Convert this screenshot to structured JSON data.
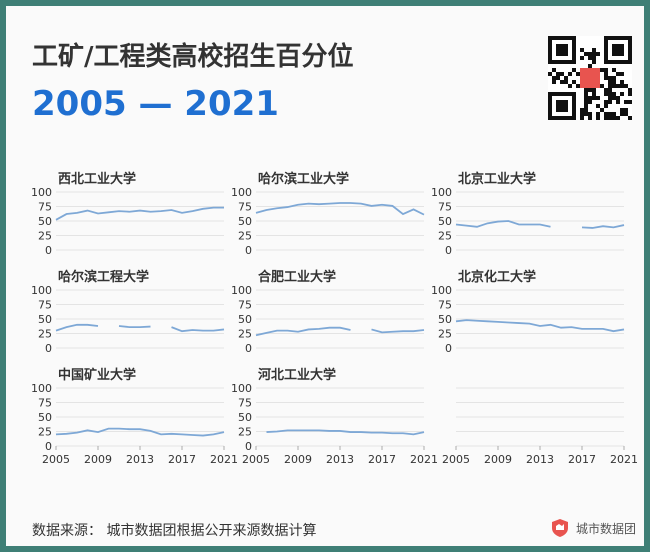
{
  "title": "工矿/工程类高校招生百分位",
  "subtitle": "2005 — 2021",
  "source": "数据来源： 城市数据团根据公开来源数据计算",
  "brand": {
    "name": "城市数据团",
    "color": "#e8544f",
    "logo_icon": "shield-logo-icon"
  },
  "colors": {
    "line": "#7ea8d6",
    "grid": "#dcdcdc",
    "axis_text": "#333333",
    "panel_title": "#333333",
    "title": "#333333",
    "subtitle": "#1f6fd1",
    "background": "#3f7f76"
  },
  "chart_data": [
    {
      "type": "line",
      "title": "西北工业大学",
      "ylim": [
        0,
        100
      ],
      "yticks": [
        0,
        25,
        50,
        75,
        100
      ],
      "xticks": [
        2005,
        2009,
        2013,
        2017,
        2021
      ],
      "x": [
        2005,
        2006,
        2007,
        2008,
        2009,
        2010,
        2011,
        2012,
        2013,
        2014,
        2015,
        2016,
        2017,
        2018,
        2019,
        2020,
        2021
      ],
      "y": [
        52,
        62,
        64,
        68,
        63,
        65,
        67,
        66,
        68,
        66,
        67,
        69,
        64,
        67,
        71,
        73,
        73
      ]
    },
    {
      "type": "line",
      "title": "哈尔滨工业大学",
      "ylim": [
        0,
        100
      ],
      "yticks": [
        0,
        25,
        50,
        75,
        100
      ],
      "xticks": [
        2005,
        2009,
        2013,
        2017,
        2021
      ],
      "x": [
        2005,
        2006,
        2007,
        2008,
        2009,
        2010,
        2011,
        2012,
        2013,
        2014,
        2015,
        2016,
        2017,
        2018,
        2019,
        2020,
        2021
      ],
      "y": [
        64,
        69,
        72,
        74,
        78,
        80,
        79,
        80,
        81,
        81,
        80,
        76,
        78,
        76,
        62,
        70,
        61
      ]
    },
    {
      "type": "line",
      "title": "北京工业大学",
      "ylim": [
        0,
        100
      ],
      "yticks": [
        0,
        25,
        50,
        75,
        100
      ],
      "xticks": [
        2005,
        2009,
        2013,
        2017,
        2021
      ],
      "x": [
        2005,
        2006,
        2007,
        2008,
        2009,
        2010,
        2011,
        2012,
        2013,
        2014,
        2015,
        2016,
        2017,
        2018,
        2019,
        2020,
        2021
      ],
      "y": [
        44,
        42,
        40,
        46,
        49,
        50,
        44,
        44,
        44,
        40,
        null,
        null,
        39,
        38,
        41,
        39,
        43
      ]
    },
    {
      "type": "line",
      "title": "哈尔滨工程大学",
      "ylim": [
        0,
        100
      ],
      "yticks": [
        0,
        25,
        50,
        75,
        100
      ],
      "xticks": [
        2005,
        2009,
        2013,
        2017,
        2021
      ],
      "x": [
        2005,
        2006,
        2007,
        2008,
        2009,
        2010,
        2011,
        2012,
        2013,
        2014,
        2015,
        2016,
        2017,
        2018,
        2019,
        2020,
        2021
      ],
      "y": [
        30,
        36,
        40,
        40,
        38,
        null,
        38,
        36,
        36,
        37,
        null,
        36,
        29,
        31,
        30,
        30,
        32
      ]
    },
    {
      "type": "line",
      "title": "合肥工业大学",
      "ylim": [
        0,
        100
      ],
      "yticks": [
        0,
        25,
        50,
        75,
        100
      ],
      "xticks": [
        2005,
        2009,
        2013,
        2017,
        2021
      ],
      "x": [
        2005,
        2006,
        2007,
        2008,
        2009,
        2010,
        2011,
        2012,
        2013,
        2014,
        2015,
        2016,
        2017,
        2018,
        2019,
        2020,
        2021
      ],
      "y": [
        22,
        26,
        30,
        30,
        28,
        32,
        33,
        35,
        35,
        31,
        null,
        32,
        27,
        28,
        29,
        29,
        31
      ]
    },
    {
      "type": "line",
      "title": "北京化工大学",
      "ylim": [
        0,
        100
      ],
      "yticks": [
        0,
        25,
        50,
        75,
        100
      ],
      "xticks": [
        2005,
        2009,
        2013,
        2017,
        2021
      ],
      "x": [
        2005,
        2006,
        2007,
        2008,
        2009,
        2010,
        2011,
        2012,
        2013,
        2014,
        2015,
        2016,
        2017,
        2018,
        2019,
        2020,
        2021
      ],
      "y": [
        46,
        48,
        47,
        46,
        45,
        44,
        43,
        42,
        38,
        40,
        35,
        36,
        33,
        33,
        33,
        29,
        32
      ]
    },
    {
      "type": "line",
      "title": "中国矿业大学",
      "ylim": [
        0,
        100
      ],
      "yticks": [
        0,
        25,
        50,
        75,
        100
      ],
      "xticks": [
        2005,
        2009,
        2013,
        2017,
        2021
      ],
      "x": [
        2005,
        2006,
        2007,
        2008,
        2009,
        2010,
        2011,
        2012,
        2013,
        2014,
        2015,
        2016,
        2017,
        2018,
        2019,
        2020,
        2021
      ],
      "y": [
        20,
        21,
        23,
        27,
        24,
        30,
        30,
        29,
        29,
        26,
        20,
        21,
        20,
        19,
        18,
        20,
        24
      ]
    },
    {
      "type": "line",
      "title": "河北工业大学",
      "ylim": [
        0,
        100
      ],
      "yticks": [
        0,
        25,
        50,
        75,
        100
      ],
      "xticks": [
        2005,
        2009,
        2013,
        2017,
        2021
      ],
      "x": [
        2005,
        2006,
        2007,
        2008,
        2009,
        2010,
        2011,
        2012,
        2013,
        2014,
        2015,
        2016,
        2017,
        2018,
        2019,
        2020,
        2021
      ],
      "y": [
        null,
        24,
        25,
        27,
        27,
        27,
        27,
        26,
        26,
        24,
        24,
        23,
        23,
        22,
        22,
        20,
        24
      ]
    },
    {
      "type": "line",
      "title": "",
      "ylim": [
        0,
        100
      ],
      "yticks": [],
      "xticks": [
        2005,
        2009,
        2013,
        2017,
        2021
      ],
      "x": [],
      "y": []
    }
  ]
}
